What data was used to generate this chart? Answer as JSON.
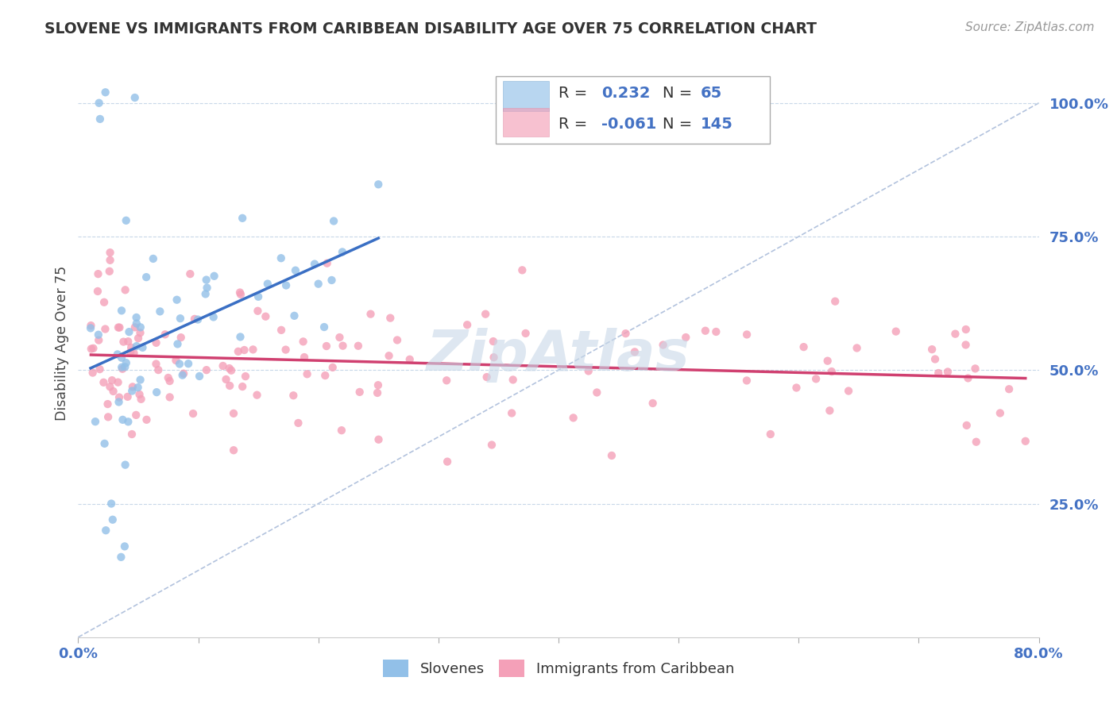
{
  "title": "SLOVENE VS IMMIGRANTS FROM CARIBBEAN DISABILITY AGE OVER 75 CORRELATION CHART",
  "source": "Source: ZipAtlas.com",
  "xmin": 0.0,
  "xmax": 0.8,
  "ymin": 0.0,
  "ymax": 1.1,
  "blue_color": "#92C0E8",
  "pink_color": "#F4A0B8",
  "blue_line_color": "#3A6FC4",
  "pink_line_color": "#D04070",
  "diagonal_color": "#AABCDA",
  "text_color": "#4472C4",
  "grid_color": "#C8D8E8",
  "background": "#FFFFFF",
  "watermark": "ZipAtlas",
  "legend_r1": "R =",
  "legend_v1": "0.232",
  "legend_n1_label": "N =",
  "legend_n1": "65",
  "legend_r2": "R =",
  "legend_v2": "-0.061",
  "legend_n2_label": "N =",
  "legend_n2": "145"
}
